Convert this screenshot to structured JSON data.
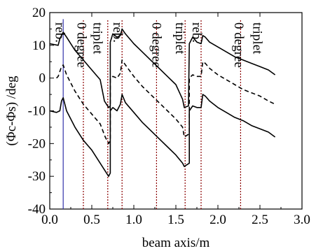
{
  "chart_data": {
    "type": "line",
    "xlabel": "beam axis/m",
    "ylabel": "(Φc-Φs) /deg",
    "xlim": [
      0.0,
      3.0
    ],
    "ylim": [
      -40,
      20
    ],
    "x_ticks": [
      "0.0",
      "0.5",
      "1.0",
      "1.5",
      "2.0",
      "2.5",
      "3.0"
    ],
    "y_ticks": [
      "20",
      "10",
      "0",
      "-10",
      "-20",
      "-30",
      "-40"
    ],
    "grid": false,
    "region_labels": [
      {
        "text": "reb.",
        "x": 0.07,
        "y": 17
      },
      {
        "text": "0 degree",
        "x": 0.33,
        "y": 17
      },
      {
        "text": "triplet",
        "x": 0.52,
        "y": 17
      },
      {
        "text": "reb.",
        "x": 0.76,
        "y": 17
      },
      {
        "text": "0 degree",
        "x": 1.22,
        "y": 17
      },
      {
        "text": "triplet",
        "x": 1.5,
        "y": 17
      },
      {
        "text": "reb.",
        "x": 1.7,
        "y": 17
      },
      {
        "text": "0 degree",
        "x": 2.2,
        "y": 17
      },
      {
        "text": "triplet",
        "x": 2.42,
        "y": 17
      }
    ],
    "vertical_lines": [
      {
        "x": 0.16,
        "style": "solid",
        "color": "#3333aa"
      },
      {
        "x": 0.4,
        "style": "dotted",
        "color": "#8b0000"
      },
      {
        "x": 0.69,
        "style": "dotted",
        "color": "#8b0000"
      },
      {
        "x": 0.86,
        "style": "dotted",
        "color": "#8b0000"
      },
      {
        "x": 1.27,
        "style": "dotted",
        "color": "#8b0000"
      },
      {
        "x": 1.61,
        "style": "dotted",
        "color": "#8b0000"
      },
      {
        "x": 1.8,
        "style": "dotted",
        "color": "#8b0000"
      },
      {
        "x": 2.27,
        "style": "dotted",
        "color": "#8b0000"
      }
    ],
    "series": [
      {
        "style": "solid",
        "points": [
          [
            0.0,
            10.5
          ],
          [
            0.1,
            10
          ],
          [
            0.12,
            12
          ],
          [
            0.16,
            14
          ],
          [
            0.2,
            12.5
          ],
          [
            0.3,
            8.5
          ],
          [
            0.4,
            5.5
          ],
          [
            0.5,
            2.5
          ],
          [
            0.6,
            -0.5
          ],
          [
            0.65,
            -7
          ],
          [
            0.7,
            -9
          ],
          [
            0.72,
            -8.5
          ],
          [
            0.72,
            11
          ],
          [
            0.75,
            13.5
          ],
          [
            0.8,
            12.5
          ],
          [
            0.84,
            13
          ],
          [
            0.86,
            15
          ],
          [
            0.9,
            13.5
          ],
          [
            1.0,
            10.5
          ],
          [
            1.1,
            8
          ],
          [
            1.2,
            5.5
          ],
          [
            1.3,
            3
          ],
          [
            1.4,
            0.5
          ],
          [
            1.5,
            -2
          ],
          [
            1.58,
            -6.5
          ],
          [
            1.6,
            -9
          ],
          [
            1.65,
            -8.5
          ],
          [
            1.66,
            10.5
          ],
          [
            1.7,
            12.5
          ],
          [
            1.75,
            11
          ],
          [
            1.8,
            10.5
          ],
          [
            1.82,
            13
          ],
          [
            1.85,
            12.5
          ],
          [
            1.9,
            11
          ],
          [
            2.0,
            9.5
          ],
          [
            2.1,
            8
          ],
          [
            2.2,
            6.5
          ],
          [
            2.3,
            5.5
          ],
          [
            2.4,
            4.5
          ],
          [
            2.5,
            3.5
          ],
          [
            2.6,
            2.5
          ],
          [
            2.68,
            1
          ]
        ]
      },
      {
        "style": "dashed",
        "points": [
          [
            0.08,
            0
          ],
          [
            0.1,
            0.5
          ],
          [
            0.14,
            3.5
          ],
          [
            0.16,
            4
          ],
          [
            0.2,
            1
          ],
          [
            0.3,
            -4
          ],
          [
            0.4,
            -8
          ],
          [
            0.5,
            -11
          ],
          [
            0.6,
            -14
          ],
          [
            0.66,
            -18
          ],
          [
            0.7,
            -20
          ],
          [
            0.72,
            -19
          ],
          [
            0.72,
            0
          ],
          [
            0.75,
            0.5
          ],
          [
            0.8,
            0
          ],
          [
            0.84,
            1.5
          ],
          [
            0.86,
            5.5
          ],
          [
            0.9,
            4
          ],
          [
            1.0,
            0.5
          ],
          [
            1.1,
            -2.5
          ],
          [
            1.2,
            -5
          ],
          [
            1.3,
            -7.5
          ],
          [
            1.4,
            -10
          ],
          [
            1.5,
            -12.5
          ],
          [
            1.58,
            -15
          ],
          [
            1.6,
            -18
          ],
          [
            1.66,
            -17
          ],
          [
            1.66,
            0
          ],
          [
            1.7,
            1
          ],
          [
            1.75,
            0.5
          ],
          [
            1.8,
            0.5
          ],
          [
            1.82,
            5
          ],
          [
            1.85,
            4.5
          ],
          [
            1.9,
            3
          ],
          [
            2.0,
            1
          ],
          [
            2.1,
            -0.5
          ],
          [
            2.2,
            -2
          ],
          [
            2.3,
            -3.5
          ],
          [
            2.4,
            -4.5
          ],
          [
            2.5,
            -5.5
          ],
          [
            2.6,
            -7
          ],
          [
            2.68,
            -8
          ]
        ]
      },
      {
        "style": "solid",
        "points": [
          [
            0.0,
            -10
          ],
          [
            0.08,
            -10.5
          ],
          [
            0.12,
            -10
          ],
          [
            0.14,
            -7
          ],
          [
            0.16,
            -6
          ],
          [
            0.2,
            -10
          ],
          [
            0.3,
            -15
          ],
          [
            0.4,
            -19
          ],
          [
            0.5,
            -22
          ],
          [
            0.6,
            -26
          ],
          [
            0.65,
            -28
          ],
          [
            0.7,
            -30
          ],
          [
            0.72,
            -29
          ],
          [
            0.72,
            -10
          ],
          [
            0.75,
            -9
          ],
          [
            0.8,
            -10
          ],
          [
            0.84,
            -8
          ],
          [
            0.86,
            -5
          ],
          [
            0.9,
            -7.5
          ],
          [
            1.0,
            -10.5
          ],
          [
            1.1,
            -13.5
          ],
          [
            1.2,
            -16
          ],
          [
            1.3,
            -18.5
          ],
          [
            1.4,
            -21
          ],
          [
            1.5,
            -23.5
          ],
          [
            1.58,
            -26
          ],
          [
            1.6,
            -27
          ],
          [
            1.66,
            -26
          ],
          [
            1.66,
            -10
          ],
          [
            1.7,
            -8.5
          ],
          [
            1.75,
            -9
          ],
          [
            1.8,
            -9
          ],
          [
            1.82,
            -5
          ],
          [
            1.85,
            -5.5
          ],
          [
            1.9,
            -7
          ],
          [
            2.0,
            -9
          ],
          [
            2.1,
            -10.5
          ],
          [
            2.2,
            -12
          ],
          [
            2.3,
            -13
          ],
          [
            2.4,
            -14.5
          ],
          [
            2.5,
            -15.5
          ],
          [
            2.6,
            -16.5
          ],
          [
            2.68,
            -18
          ]
        ]
      }
    ]
  }
}
